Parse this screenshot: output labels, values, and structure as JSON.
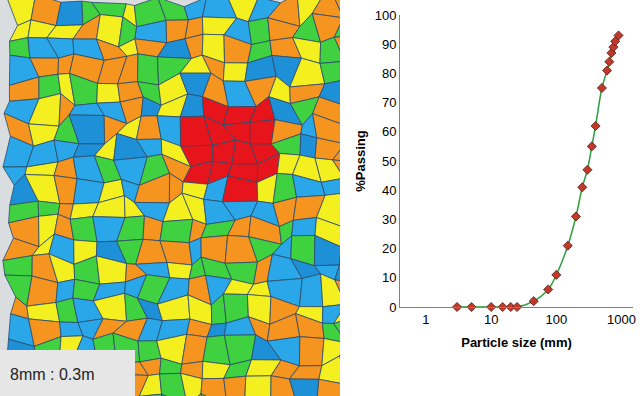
{
  "image_panel": {
    "scale_label": "8mm : 0.3m"
  },
  "chart_data": {
    "type": "line",
    "x_label": "Particle size (mm)",
    "y_label": "%Passing",
    "series": [
      {
        "x": [
          3,
          5,
          10,
          15,
          20,
          25,
          45,
          75,
          100,
          150,
          200,
          250,
          300,
          350,
          400,
          500,
          600,
          650,
          700,
          750,
          800,
          900
        ],
        "values": [
          0,
          0,
          0,
          0,
          0,
          0,
          2,
          6,
          11,
          21,
          31,
          41,
          47,
          55,
          62,
          75,
          81,
          84,
          87,
          89,
          91,
          93
        ],
        "color": "#2e9e3e",
        "marker": "diamond",
        "line_style": "solid"
      }
    ],
    "log": "x",
    "xlim": [
      0.4,
      1500
    ],
    "xticks": [
      1,
      10,
      100,
      1000
    ],
    "ylim": [
      0,
      100
    ],
    "yticks": [
      0,
      10,
      20,
      30,
      40,
      50,
      60,
      70,
      80,
      90,
      100
    ],
    "grid": false
  }
}
